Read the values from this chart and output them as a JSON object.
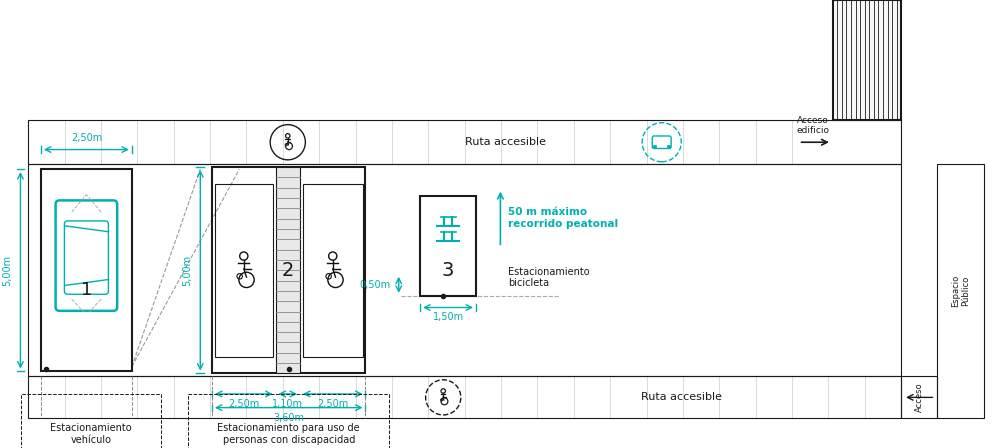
{
  "bg_color": "#ffffff",
  "black": "#1a1a1a",
  "teal": "#00b0b0",
  "gray_light": "#e0e0e0",
  "gray_strip": "#f5f5f5",
  "fig_width": 10.0,
  "fig_height": 4.48,
  "annotations": {
    "dim_2_50m_top": "2,50m",
    "dim_5_00m_left": "5,00m",
    "dim_5_00m_mid": "5,00m",
    "dim_2_50m_bl": "2,50m",
    "dim_1_10m": "1,10m",
    "dim_2_50m_br": "2,50m",
    "dim_3_60m": "3,60m",
    "dim_0_50m": "0,50m",
    "dim_1_50m": "1,50m",
    "label_spot1": "1",
    "label_spot2": "2",
    "label_spot3": "3",
    "ruta_accesible_top": "Ruta accesible",
    "ruta_accesible_bot": "Ruta accesible",
    "acceso_edificio": "Acceso\nedificio",
    "acceso": "Acceso",
    "espacio_publico": "Espacio\nPúblico",
    "estac_vehiculo": "Estacionamiento\nvehículo",
    "estac_discapacidad": "Estacionamiento para uso de\npersonas con discapacidad",
    "estac_bicicleta": "Estacionamiento\nbicicleta",
    "50m_maximo": "50 m máximo\nrecorrido peatonal"
  }
}
